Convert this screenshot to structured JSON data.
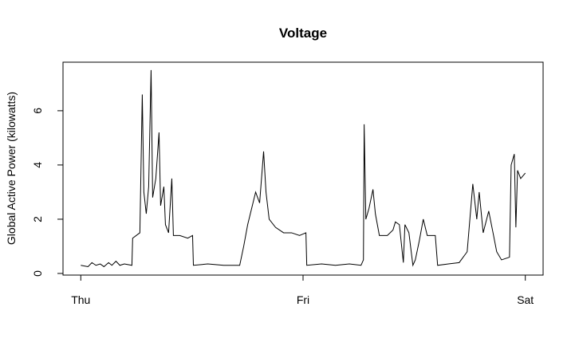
{
  "chart_data": {
    "type": "line",
    "title": "Voltage",
    "ylabel": "Global Active Power (kilowatts)",
    "x": [
      0,
      0.78,
      1.2,
      1.64,
      2.1,
      2.5,
      3.0,
      3.36,
      3.8,
      4.22,
      4.7,
      5.52,
      5.6,
      6.38,
      6.64,
      6.81,
      7.07,
      7.33,
      7.59,
      7.76,
      8.1,
      8.45,
      8.62,
      8.97,
      9.14,
      9.48,
      9.83,
      10.0,
      10.69,
      11.55,
      12.07,
      12.16,
      13.71,
      15.43,
      17.16,
      17.59,
      18.02,
      18.45,
      18.88,
      19.31,
      19.74,
      20.0,
      20.34,
      21.03,
      21.9,
      22.76,
      23.62,
      24.31,
      24.4,
      26.0,
      27.5,
      29.0,
      30.26,
      30.52,
      30.6,
      30.78,
      31.12,
      31.55,
      31.81,
      32.24,
      33.1,
      33.71,
      33.97,
      34.4,
      34.83,
      35.0,
      35.43,
      35.86,
      36.12,
      36.55,
      36.98,
      37.41,
      38.28,
      38.53,
      39.7,
      40.86,
      41.72,
      42.33,
      42.76,
      43.02,
      43.45,
      44.05,
      44.57,
      44.91,
      45.43,
      46.29,
      46.47,
      46.81,
      46.98,
      47.16,
      47.5,
      48
    ],
    "values": [
      0.3,
      0.25,
      0.4,
      0.3,
      0.35,
      0.25,
      0.4,
      0.3,
      0.45,
      0.3,
      0.35,
      0.3,
      1.3,
      1.5,
      6.6,
      3.0,
      2.2,
      3.2,
      7.5,
      2.8,
      3.5,
      5.2,
      2.5,
      3.2,
      1.8,
      1.5,
      3.5,
      1.4,
      1.4,
      1.3,
      1.4,
      0.3,
      0.35,
      0.3,
      0.3,
      1.0,
      1.8,
      2.4,
      3.0,
      2.6,
      4.5,
      3.0,
      2.0,
      1.7,
      1.5,
      1.5,
      1.4,
      1.5,
      0.3,
      0.35,
      0.3,
      0.35,
      0.3,
      0.5,
      5.5,
      2.0,
      2.4,
      3.1,
      2.2,
      1.4,
      1.4,
      1.6,
      1.9,
      1.8,
      0.4,
      1.8,
      1.5,
      0.3,
      0.5,
      1.2,
      2.0,
      1.4,
      1.4,
      0.3,
      0.35,
      0.4,
      0.8,
      3.3,
      2.0,
      3.0,
      1.5,
      2.3,
      1.4,
      0.8,
      0.5,
      0.6,
      4.0,
      4.4,
      1.7,
      3.8,
      3.5,
      3.7
    ],
    "color": "#000000",
    "xlim": [
      -1.92,
      49.92
    ],
    "xticks": [
      {
        "value": 0,
        "label": "Thu"
      },
      {
        "value": 24,
        "label": "Fri"
      },
      {
        "value": 48,
        "label": "Sat"
      }
    ],
    "ylim": [
      -0.06,
      7.79
    ],
    "yticks": [
      0,
      2,
      4,
      6
    ],
    "grid": false
  }
}
